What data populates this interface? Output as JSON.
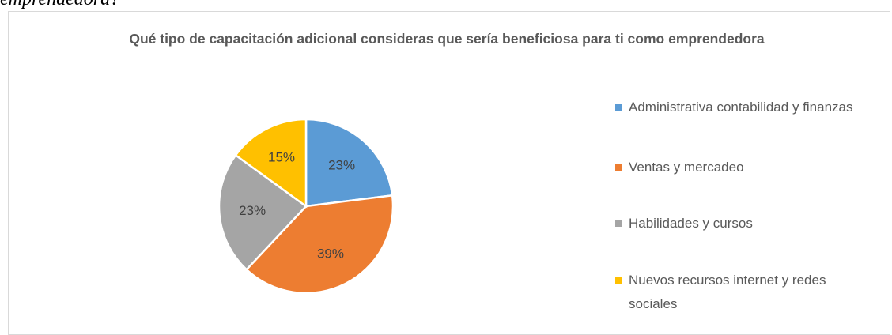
{
  "caption_fragment": "emprendedora?",
  "chart_data": {
    "type": "pie",
    "title": "Qué tipo de capacitación adicional consideras que sería beneficiosa para ti como emprendedora",
    "categories": [
      "Administrativa contabilidad y finanzas",
      "Ventas y mercadeo",
      "Habilidades y cursos",
      "Nuevos recursos internet y redes sociales"
    ],
    "values": [
      23,
      39,
      23,
      15
    ],
    "value_labels": [
      "23%",
      "39%",
      "23%",
      "15%"
    ],
    "colors": [
      "#5b9bd5",
      "#ed7d31",
      "#a5a5a5",
      "#ffc000"
    ],
    "legend": "right"
  }
}
